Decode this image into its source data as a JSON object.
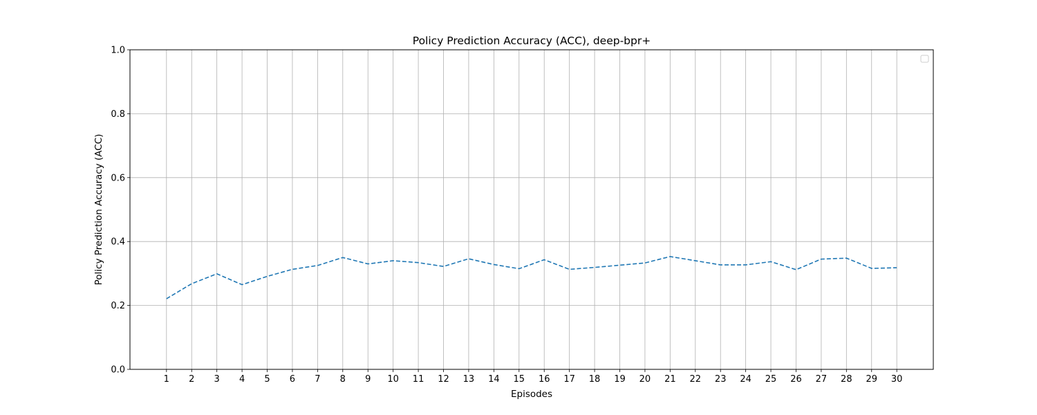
{
  "chart_data": {
    "type": "line",
    "title": "Policy Prediction Accuracy (ACC), deep-bpr+",
    "xlabel": "Episodes",
    "ylabel": "Policy Prediction Accuracy (ACC)",
    "x": [
      1,
      2,
      3,
      4,
      5,
      6,
      7,
      8,
      9,
      10,
      11,
      12,
      13,
      14,
      15,
      16,
      17,
      18,
      19,
      20,
      21,
      22,
      23,
      24,
      25,
      26,
      27,
      28,
      29,
      30
    ],
    "x_ticks": [
      "1",
      "2",
      "3",
      "4",
      "5",
      "6",
      "7",
      "8",
      "9",
      "10",
      "11",
      "12",
      "13",
      "14",
      "15",
      "16",
      "17",
      "18",
      "19",
      "20",
      "21",
      "22",
      "23",
      "24",
      "25",
      "26",
      "27",
      "28",
      "29",
      "30"
    ],
    "xlim": [
      -0.45,
      31.45
    ],
    "ylim": [
      0.0,
      1.0
    ],
    "y_ticks": [
      "0.0",
      "0.2",
      "0.4",
      "0.6",
      "0.8",
      "1.0"
    ],
    "grid": true,
    "legend": "top-right (empty)",
    "series": [
      {
        "line_style": "dashed",
        "color": "#1f77b4",
        "values": [
          0.221,
          0.268,
          0.299,
          0.265,
          0.291,
          0.313,
          0.325,
          0.35,
          0.33,
          0.34,
          0.334,
          0.322,
          0.346,
          0.328,
          0.315,
          0.343,
          0.313,
          0.319,
          0.326,
          0.333,
          0.353,
          0.34,
          0.327,
          0.327,
          0.337,
          0.312,
          0.345,
          0.348,
          0.316,
          0.318
        ]
      }
    ]
  }
}
